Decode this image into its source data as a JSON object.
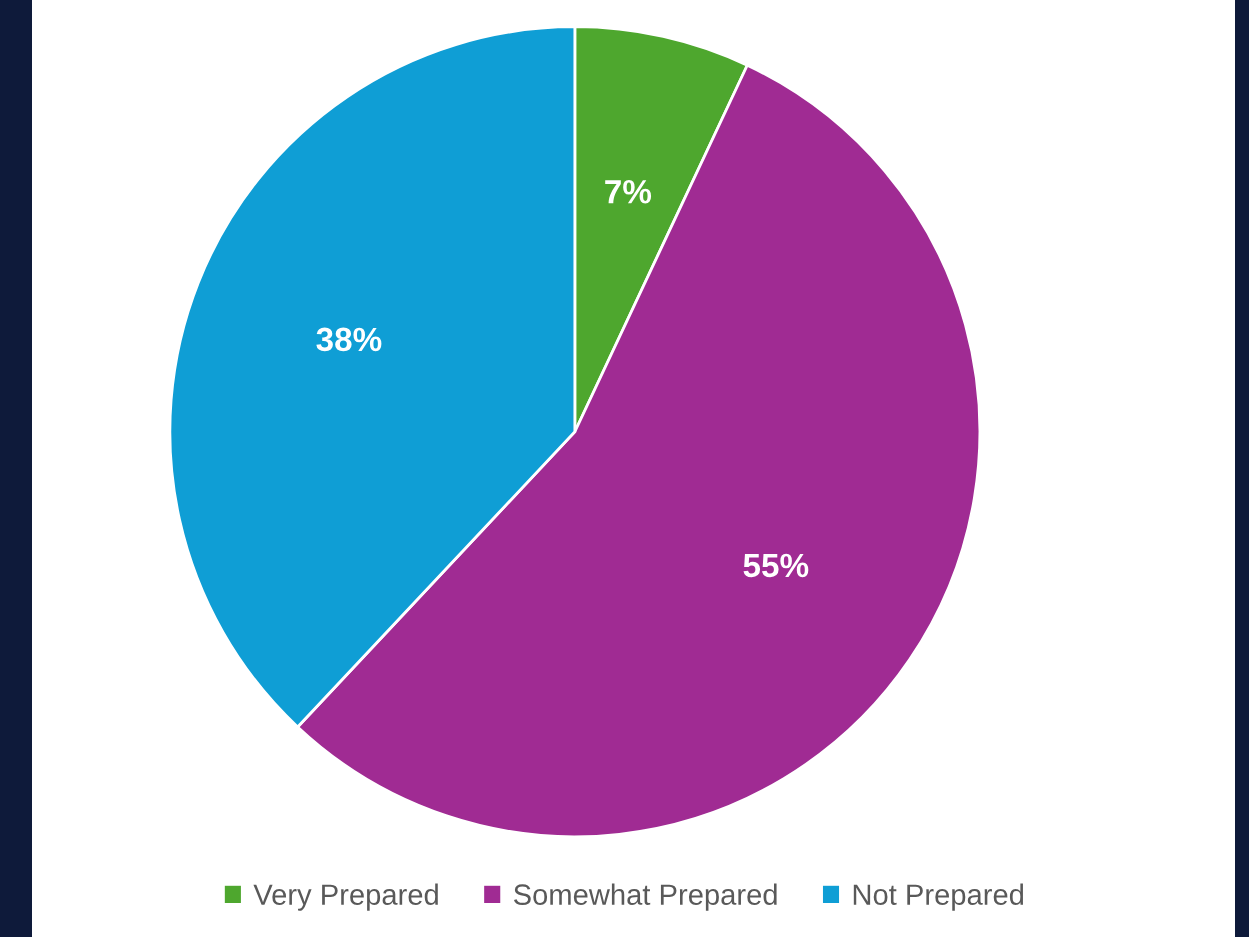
{
  "chart_data": {
    "type": "pie",
    "categories": [
      "Very Prepared",
      "Somewhat Prepared",
      "Not Prepared"
    ],
    "values": [
      7,
      55,
      38
    ],
    "colors": [
      "#4ea72e",
      "#a02b93",
      "#0f9ed5"
    ],
    "value_labels": [
      "7%",
      "55%",
      "38%"
    ],
    "legend": "bottom"
  }
}
